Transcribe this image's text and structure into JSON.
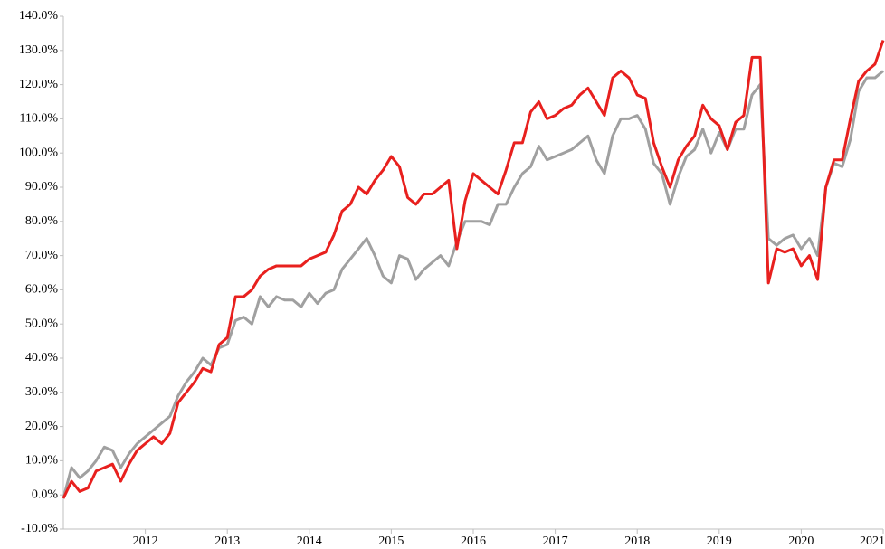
{
  "chart_data": {
    "type": "line",
    "x": [
      2011.0,
      2011.1,
      2011.2,
      2011.3,
      2011.4,
      2011.5,
      2011.6,
      2011.7,
      2011.8,
      2011.9,
      2012.0,
      2012.1,
      2012.2,
      2012.3,
      2012.4,
      2012.5,
      2012.6,
      2012.7,
      2012.8,
      2012.9,
      2013.0,
      2013.1,
      2013.2,
      2013.3,
      2013.4,
      2013.5,
      2013.6,
      2013.7,
      2013.8,
      2013.9,
      2014.0,
      2014.1,
      2014.2,
      2014.3,
      2014.4,
      2014.5,
      2014.6,
      2014.7,
      2014.8,
      2014.9,
      2015.0,
      2015.1,
      2015.2,
      2015.3,
      2015.4,
      2015.5,
      2015.6,
      2015.7,
      2015.8,
      2015.9,
      2016.0,
      2016.1,
      2016.2,
      2016.3,
      2016.4,
      2016.5,
      2016.6,
      2016.7,
      2016.8,
      2016.9,
      2017.0,
      2017.1,
      2017.2,
      2017.3,
      2017.4,
      2017.5,
      2017.6,
      2017.7,
      2017.8,
      2017.9,
      2018.0,
      2018.1,
      2018.2,
      2018.3,
      2018.4,
      2018.5,
      2018.6,
      2018.7,
      2018.8,
      2018.9,
      2019.0,
      2019.1,
      2019.2,
      2019.3,
      2019.4,
      2019.5,
      2019.6,
      2019.7,
      2019.8,
      2019.9,
      2020.0,
      2020.1,
      2020.2,
      2020.3,
      2020.4,
      2020.5,
      2020.6,
      2020.7,
      2020.8,
      2020.9,
      2021.0
    ],
    "series": [
      {
        "color": "#a0a0a0",
        "values": [
          -1,
          8,
          5,
          7,
          10,
          14,
          13,
          8,
          12,
          15,
          17,
          19,
          21,
          23,
          29,
          33,
          36,
          40,
          38,
          43,
          44,
          51,
          52,
          50,
          58,
          55,
          58,
          57,
          57,
          55,
          59,
          56,
          59,
          60,
          66,
          69,
          72,
          75,
          70,
          64,
          62,
          70,
          69,
          63,
          66,
          68,
          70,
          67,
          74,
          80,
          80,
          80,
          79,
          85,
          85,
          90,
          94,
          96,
          102,
          98,
          99,
          100,
          101,
          103,
          105,
          98,
          94,
          105,
          110,
          110,
          111,
          107,
          97,
          94,
          85,
          93,
          99,
          101,
          107,
          100,
          106,
          101,
          107,
          107,
          117,
          120,
          75,
          73,
          75,
          76,
          72,
          75,
          70,
          90,
          97,
          96,
          104,
          118,
          122,
          122,
          124
        ]
      },
      {
        "color": "#e8201e",
        "values": [
          -1,
          4,
          1,
          2,
          7,
          8,
          9,
          4,
          9,
          13,
          15,
          17,
          15,
          18,
          27,
          30,
          33,
          37,
          36,
          44,
          46,
          58,
          58,
          60,
          64,
          66,
          67,
          67,
          67,
          67,
          69,
          70,
          71,
          76,
          83,
          85,
          90,
          88,
          92,
          95,
          99,
          96,
          87,
          85,
          88,
          88,
          90,
          92,
          72,
          86,
          94,
          92,
          90,
          88,
          95,
          103,
          103,
          112,
          115,
          110,
          111,
          113,
          114,
          117,
          119,
          115,
          111,
          122,
          124,
          122,
          117,
          116,
          103,
          96,
          90,
          98,
          102,
          105,
          114,
          110,
          108,
          101,
          109,
          111,
          128,
          128,
          62,
          72,
          71,
          72,
          67,
          70,
          63,
          90,
          98,
          98,
          110,
          121,
          124,
          126,
          133
        ]
      }
    ],
    "xlim": [
      2011.0,
      2021.0
    ],
    "xticks": [
      2012,
      2013,
      2014,
      2015,
      2016,
      2017,
      2018,
      2019,
      2020,
      2021
    ],
    "ylim": [
      -10,
      140
    ],
    "yticks": [
      {
        "value": -10,
        "label": "-10.0%"
      },
      {
        "value": 0,
        "label": "0.0%"
      },
      {
        "value": 10,
        "label": "10.0%"
      },
      {
        "value": 20,
        "label": "20.0%"
      },
      {
        "value": 30,
        "label": "30.0%"
      },
      {
        "value": 40,
        "label": "40.0%"
      },
      {
        "value": 50,
        "label": "50.0%"
      },
      {
        "value": 60,
        "label": "60.0%"
      },
      {
        "value": 70,
        "label": "70.0%"
      },
      {
        "value": 80,
        "label": "80.0%"
      },
      {
        "value": 90,
        "label": "90.0%"
      },
      {
        "value": 100,
        "label": "100.0%"
      },
      {
        "value": 110,
        "label": "110.0%"
      },
      {
        "value": 120,
        "label": "120.0%"
      },
      {
        "value": 130,
        "label": "130.0%"
      },
      {
        "value": 140,
        "label": "140.0%"
      }
    ],
    "grid": false
  }
}
